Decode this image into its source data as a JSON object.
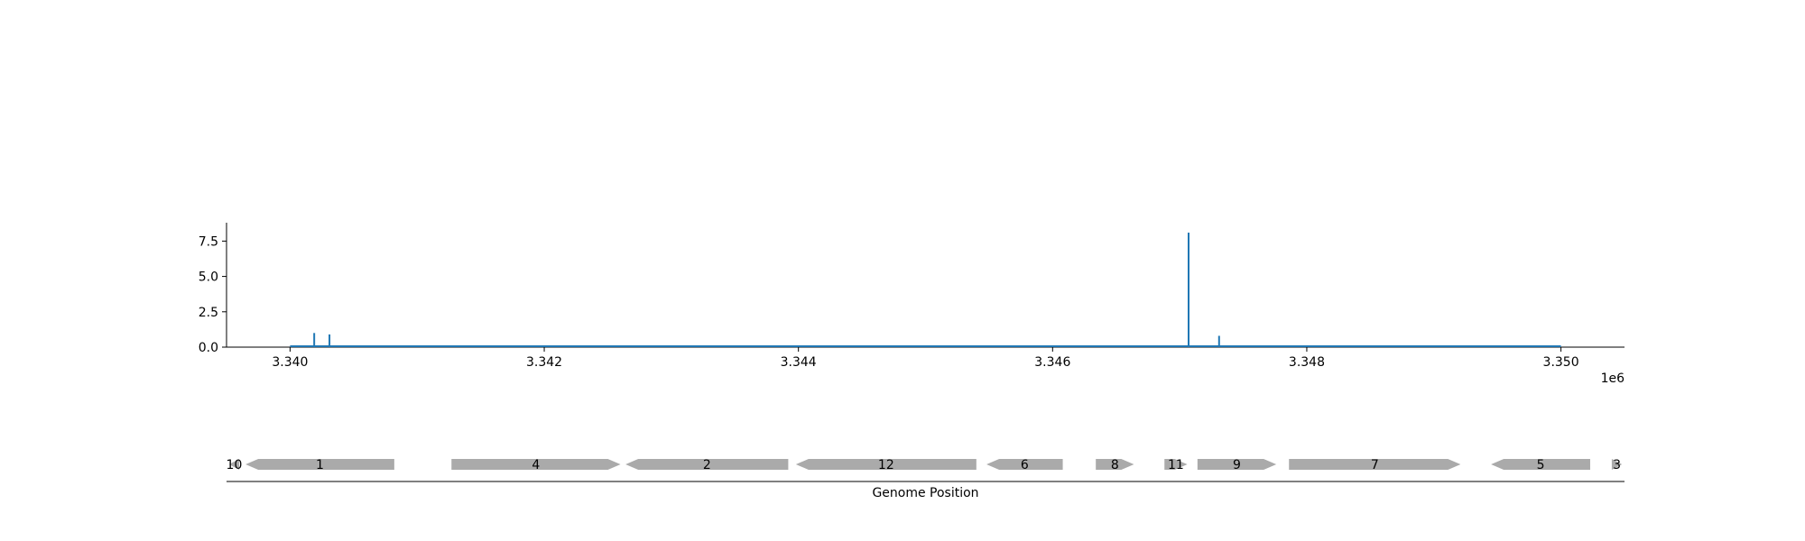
{
  "chart_data": [
    {
      "type": "line",
      "title": "",
      "xlabel": "",
      "ylabel": "",
      "x_offset_label": "1e6",
      "xlim": [
        3339500,
        3350500
      ],
      "ylim": [
        0,
        8.8
      ],
      "grid": false,
      "legend": "none",
      "color": "#1f77b4",
      "xticks": [
        {
          "value": 3340000,
          "label": "3.340"
        },
        {
          "value": 3342000,
          "label": "3.342"
        },
        {
          "value": 3344000,
          "label": "3.344"
        },
        {
          "value": 3346000,
          "label": "3.346"
        },
        {
          "value": 3348000,
          "label": "3.348"
        },
        {
          "value": 3350000,
          "label": "3.350"
        }
      ],
      "yticks": [
        {
          "value": 0,
          "label": "0.0"
        },
        {
          "value": 2.5,
          "label": "2.5"
        },
        {
          "value": 5,
          "label": "5.0"
        },
        {
          "value": 7.5,
          "label": "7.5"
        }
      ],
      "series": [
        {
          "baseline_range": [
            3340000,
            3350000
          ],
          "peaks": [
            {
              "x": 3340190,
              "y": 1.0
            },
            {
              "x": 3340310,
              "y": 0.9
            },
            {
              "x": 3347070,
              "y": 8.1
            },
            {
              "x": 3347310,
              "y": 0.8
            }
          ]
        }
      ]
    },
    {
      "type": "gene-track",
      "xlabel": "Genome Position",
      "xlim": [
        3339500,
        3350500
      ],
      "color": "#aaaaaa",
      "genes": [
        {
          "label": "10",
          "start": 3339520,
          "end": 3339600,
          "strand": -1
        },
        {
          "label": "1",
          "start": 3339650,
          "end": 3340820,
          "strand": -1
        },
        {
          "label": "4",
          "start": 3341270,
          "end": 3342600,
          "strand": 1
        },
        {
          "label": "2",
          "start": 3342640,
          "end": 3343920,
          "strand": -1
        },
        {
          "label": "12",
          "start": 3343980,
          "end": 3345400,
          "strand": -1
        },
        {
          "label": "6",
          "start": 3345480,
          "end": 3346080,
          "strand": -1
        },
        {
          "label": "8",
          "start": 3346340,
          "end": 3346640,
          "strand": 1
        },
        {
          "label": "11",
          "start": 3346880,
          "end": 3347060,
          "strand": 1
        },
        {
          "label": "9",
          "start": 3347140,
          "end": 3347760,
          "strand": 1
        },
        {
          "label": "7",
          "start": 3347860,
          "end": 3349210,
          "strand": 1
        },
        {
          "label": "5",
          "start": 3349450,
          "end": 3350230,
          "strand": -1
        },
        {
          "label": "3",
          "start": 3350400,
          "end": 3350480,
          "strand": 1
        }
      ]
    }
  ]
}
